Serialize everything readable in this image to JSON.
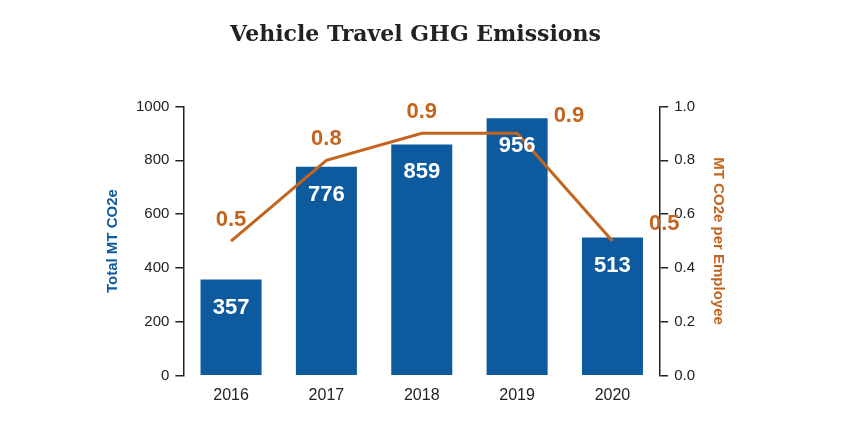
{
  "chart_data": {
    "type": "bar",
    "title": "Vehicle Travel GHG Emissions",
    "categories": [
      "2016",
      "2017",
      "2018",
      "2019",
      "2020"
    ],
    "y_label": "Total MT CO2e",
    "y2_label": "MT CO2e per Employee",
    "ylim": [
      0,
      1000
    ],
    "yticks": [
      0,
      200,
      400,
      600,
      800,
      1000
    ],
    "y2lim": [
      0,
      1
    ],
    "y2ticks": [
      {
        "value": 0,
        "label": "0.0"
      },
      0.2,
      0.4,
      0.6,
      0.8,
      {
        "value": 1,
        "label": "1.0"
      }
    ],
    "grid": false,
    "data_labels": true,
    "series": [
      {
        "type": "bar",
        "color": "#0d5a9e",
        "values": [
          357,
          776,
          859,
          956,
          513
        ]
      },
      {
        "type": "line",
        "axis": "y2",
        "color": "#c4651f",
        "marker": "none",
        "line_style": "solid",
        "values": [
          0.5,
          0.8,
          0.9,
          0.9,
          0.5
        ]
      }
    ]
  }
}
